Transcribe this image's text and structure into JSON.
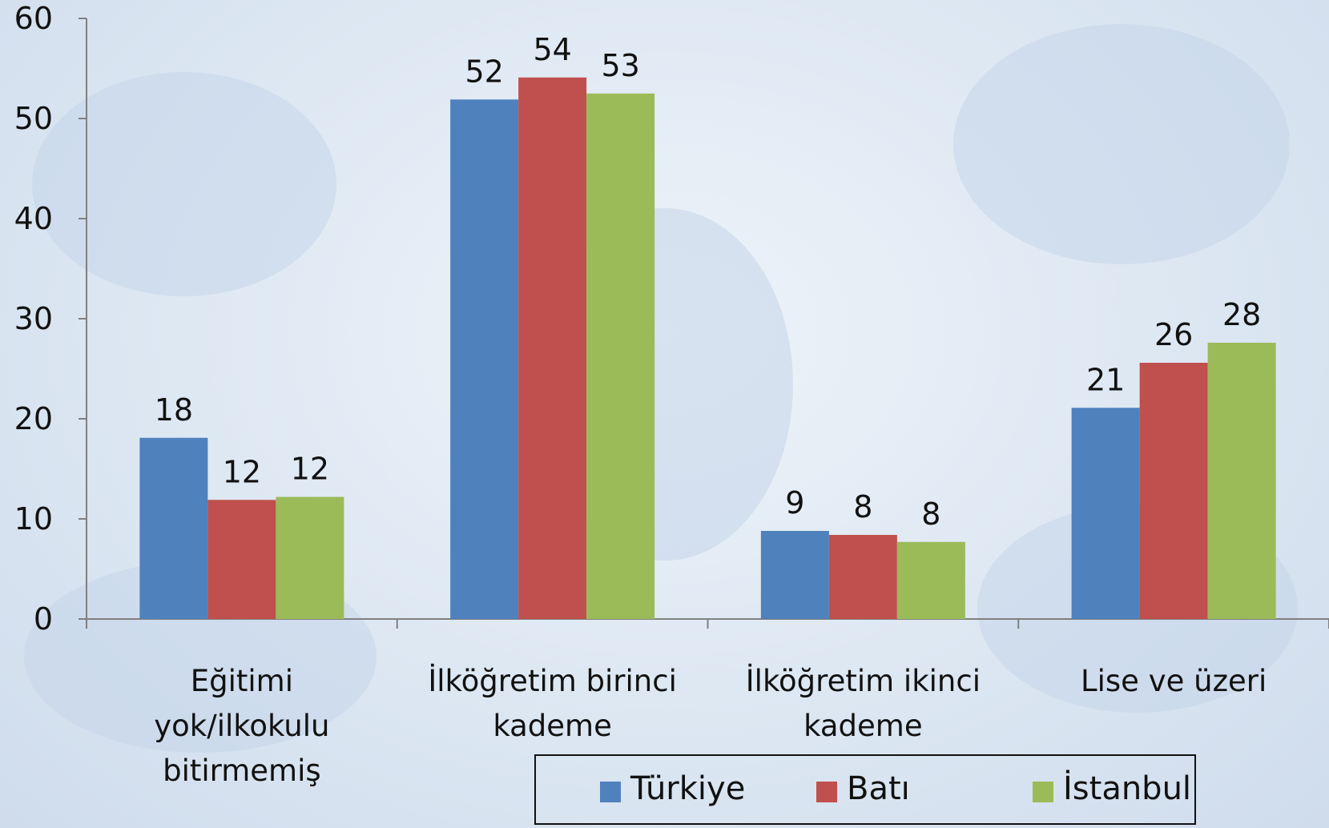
{
  "chart_data": {
    "type": "bar",
    "categories": [
      "Eğitimi yok/ilkokulu bitirmemiş",
      "İlköğretim birinci kademe",
      "İlköğretim ikinci kademe",
      "Lise ve üzeri"
    ],
    "series": [
      {
        "name": "Türkiye",
        "color": "#4f81bd",
        "values": [
          18.1,
          51.9,
          8.8,
          21.1
        ],
        "value_labels": [
          "18",
          "52",
          "9",
          "21"
        ]
      },
      {
        "name": "Batı",
        "color": "#c0504d",
        "values": [
          11.9,
          54.1,
          8.4,
          25.6
        ],
        "value_labels": [
          "12",
          "54",
          "8",
          "26"
        ]
      },
      {
        "name": "İstanbul",
        "color": "#9bbb59",
        "values": [
          12.2,
          52.5,
          7.7,
          27.6
        ],
        "value_labels": [
          "12",
          "53",
          "8",
          "28"
        ]
      }
    ],
    "ylim": [
      0,
      60
    ],
    "yticks": [
      0,
      10,
      20,
      30,
      40,
      50,
      60
    ],
    "legend": "bottom"
  }
}
